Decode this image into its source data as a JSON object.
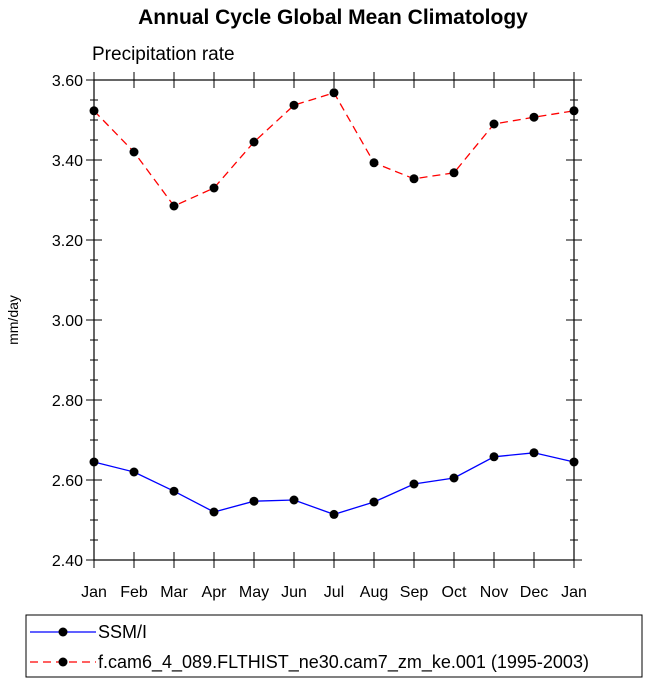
{
  "chart_data": {
    "type": "line",
    "title": "Annual Cycle Global Mean Climatology",
    "subtitle": "Precipitation rate",
    "xlabel": "",
    "ylabel": "mm/day",
    "ylim": [
      2.4,
      3.6
    ],
    "y_ticks": [
      "2.40",
      "2.60",
      "2.80",
      "3.00",
      "3.20",
      "3.40",
      "3.60"
    ],
    "categories": [
      "Jan",
      "Feb",
      "Mar",
      "Apr",
      "May",
      "Jun",
      "Jul",
      "Aug",
      "Sep",
      "Oct",
      "Nov",
      "Dec",
      "Jan"
    ],
    "grid": false,
    "legend_position": "bottom",
    "series": [
      {
        "name": "SSM/I",
        "color": "#0000ff",
        "dash": "solid",
        "values": [
          2.645,
          2.62,
          2.572,
          2.52,
          2.547,
          2.55,
          2.514,
          2.545,
          2.59,
          2.605,
          2.658,
          2.668,
          2.645
        ]
      },
      {
        "name": "f.cam6_4_089.FLTHIST_ne30.cam7_zm_ke.001 (1995-2003)",
        "color": "#ff0000",
        "dash": "dashed",
        "values": [
          3.523,
          3.42,
          3.285,
          3.33,
          3.445,
          3.537,
          3.568,
          3.393,
          3.353,
          3.368,
          3.49,
          3.507,
          3.523
        ]
      }
    ]
  }
}
